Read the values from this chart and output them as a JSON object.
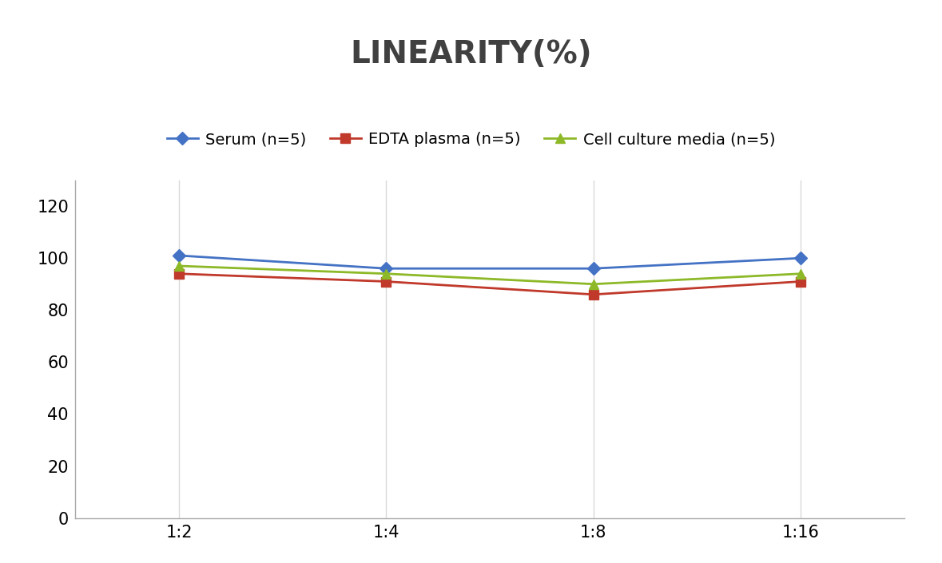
{
  "title": "LINEARITY(%)",
  "title_fontsize": 28,
  "title_fontweight": "bold",
  "title_color": "#404040",
  "x_labels": [
    "1:2",
    "1:4",
    "1:8",
    "1:16"
  ],
  "x_positions": [
    0,
    1,
    2,
    3
  ],
  "series": [
    {
      "label": "Serum (n=5)",
      "values": [
        101,
        96,
        96,
        100
      ],
      "color": "#4472C4",
      "marker": "D",
      "markersize": 8,
      "linewidth": 2
    },
    {
      "label": "EDTA plasma (n=5)",
      "values": [
        94,
        91,
        86,
        91
      ],
      "color": "#C0392B",
      "marker": "s",
      "markersize": 8,
      "linewidth": 2
    },
    {
      "label": "Cell culture media (n=5)",
      "values": [
        97,
        94,
        90,
        94
      ],
      "color": "#8DB928",
      "marker": "^",
      "markersize": 8,
      "linewidth": 2
    }
  ],
  "ylim": [
    0,
    130
  ],
  "yticks": [
    0,
    20,
    40,
    60,
    80,
    100,
    120
  ],
  "grid_color": "#D9D9D9",
  "grid_linewidth": 1,
  "background_color": "#FFFFFF",
  "legend_fontsize": 14,
  "tick_fontsize": 15,
  "axes_linecolor": "#AAAAAA",
  "xlim": [
    -0.5,
    3.5
  ]
}
